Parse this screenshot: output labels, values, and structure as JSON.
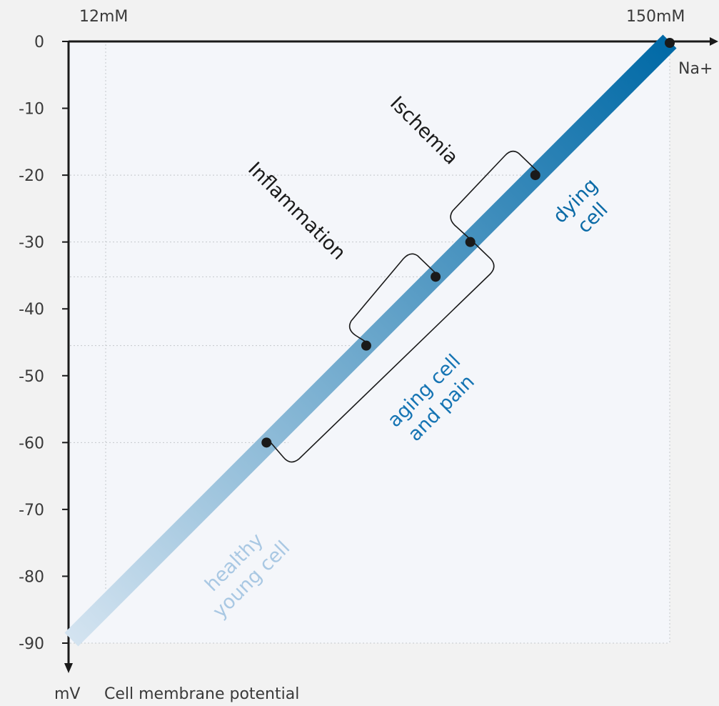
{
  "chart_data": {
    "type": "line",
    "x_axis": {
      "min_label": "12mM",
      "max_label": "150mM",
      "end_label": "Na+",
      "range": [
        12,
        150
      ]
    },
    "y_axis": {
      "unit_label": "mV",
      "title": "Cell membrane potential",
      "ticks": [
        0,
        -10,
        -20,
        -30,
        -40,
        -50,
        -60,
        -70,
        -80,
        -90
      ],
      "tick_labels": [
        "0",
        "-10",
        "-20",
        "-30",
        "-40",
        "-50",
        "-60",
        "-70",
        "-80",
        "-90"
      ],
      "range": [
        -90,
        0
      ]
    },
    "grid": true,
    "series": [
      {
        "line": [
          [
            12,
            -90
          ],
          [
            150,
            0
          ]
        ],
        "color_gradient": [
          "#d3e3f0",
          "#0069a6"
        ]
      }
    ],
    "points": [
      {
        "x": 57,
        "y": -60
      },
      {
        "x": 80,
        "y": -45.5
      },
      {
        "x": 96,
        "y": -35.2
      },
      {
        "x": 104,
        "y": -30
      },
      {
        "x": 119,
        "y": -20
      },
      {
        "x": 150,
        "y": 0
      }
    ],
    "brackets": [
      {
        "label": "Inflammation",
        "from_y": -45.5,
        "to_y": -35.2
      },
      {
        "label": "Ischemia",
        "from_y": -30,
        "to_y": -20
      },
      {
        "from_y": -60,
        "to_y": -30
      }
    ],
    "regions": [
      {
        "lines": [
          "healthy",
          "young cell"
        ],
        "color": "#a9c8e3"
      },
      {
        "lines": [
          "aging cell",
          "and pain"
        ],
        "color": "#1574b3"
      },
      {
        "lines": [
          "dying",
          "cell"
        ],
        "color": "#0a6aa6"
      }
    ]
  }
}
